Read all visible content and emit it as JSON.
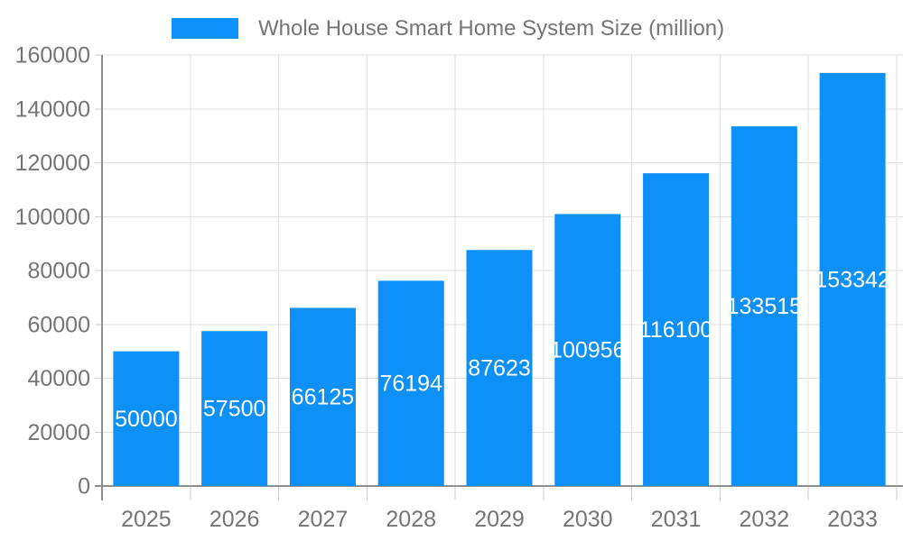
{
  "chart_data": {
    "type": "bar",
    "title": "Whole House Smart Home System Size (million)",
    "categories": [
      "2025",
      "2026",
      "2027",
      "2028",
      "2029",
      "2030",
      "2031",
      "2032",
      "2033"
    ],
    "values": [
      50000,
      57500,
      66125,
      76194,
      87623,
      100956,
      116100,
      133515,
      153342
    ],
    "bar_value_labels": [
      "50000",
      "57500",
      "66125",
      "76194",
      "87623",
      "100956",
      "116100",
      "133515",
      "153342"
    ],
    "xlabel": "",
    "ylabel": "",
    "ylim": [
      0,
      160000
    ],
    "ytick_step": 20000,
    "ytick_labels": [
      "0",
      "20000",
      "40000",
      "60000",
      "80000",
      "100000",
      "120000",
      "140000",
      "160000"
    ],
    "grid": "on",
    "legend_position": "top-center",
    "value_label_position": "inside-center",
    "colors": {
      "bar": "#0d90f8",
      "axis_text": "#757575",
      "bar_label_text": "#ffffff",
      "gridline": "#e0e0e0",
      "axis_line": "#8f8f8f",
      "tick": "#cccccc",
      "background": "#ffffff"
    }
  }
}
